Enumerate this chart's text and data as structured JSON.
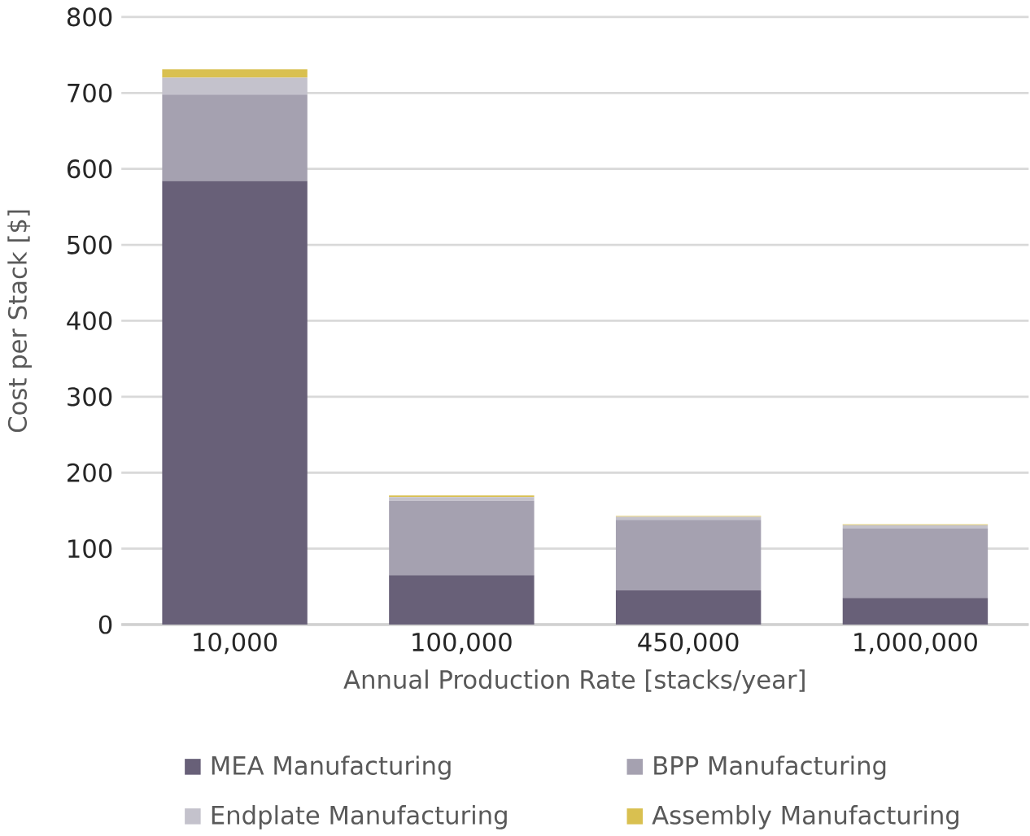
{
  "chart_data": {
    "type": "bar",
    "stacked": true,
    "xlabel": "Annual Production Rate [stacks/year]",
    "ylabel": "Cost per Stack [$]",
    "categories": [
      "10,000",
      "100,000",
      "450,000",
      "1,000,000"
    ],
    "series": [
      {
        "name": "MEA Manufacturing",
        "color": "#686078",
        "values": [
          584,
          65,
          45,
          35
        ]
      },
      {
        "name": "BPP Manufacturing",
        "color": "#a5a1b0",
        "values": [
          114,
          98,
          93,
          92
        ]
      },
      {
        "name": "Endplate Manufacturing",
        "color": "#c4c2cc",
        "values": [
          22,
          5,
          4,
          4
        ]
      },
      {
        "name": "Assembly Manufacturing",
        "color": "#d9c050",
        "values": [
          11,
          2,
          1,
          1
        ]
      }
    ],
    "ylim": [
      0,
      800
    ],
    "yticks": [
      0,
      100,
      200,
      300,
      400,
      500,
      600,
      700,
      800
    ],
    "grid": "y",
    "legend": "bottom"
  }
}
